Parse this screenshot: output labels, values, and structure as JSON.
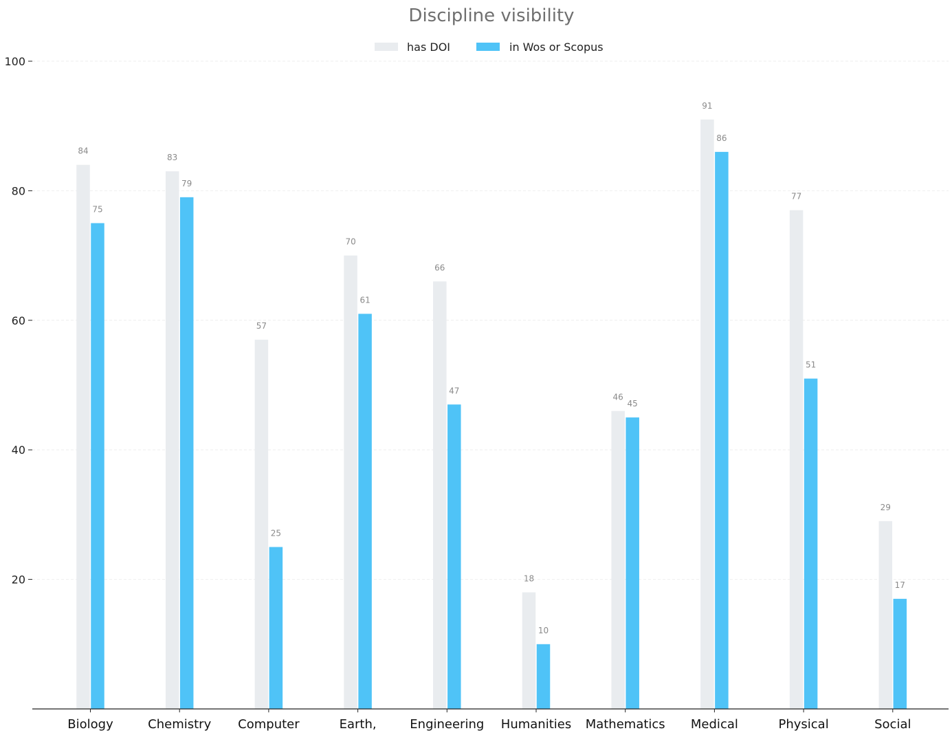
{
  "chart_data": {
    "type": "bar",
    "title": "Discipline visibility",
    "categories": [
      "Biology",
      "Chemistry",
      "Computer",
      "Earth,",
      "Engineering",
      "Humanities",
      "Mathematics",
      "Medical",
      "Physical",
      "Social"
    ],
    "series": [
      {
        "name": "has DOI",
        "color": "#e9ecef",
        "values": [
          84,
          83,
          57,
          70,
          66,
          18,
          46,
          91,
          77,
          29
        ]
      },
      {
        "name": "in Wos or Scopus",
        "color": "#4fc3f7",
        "values": [
          75,
          79,
          25,
          61,
          47,
          10,
          45,
          86,
          51,
          17
        ]
      }
    ],
    "yticks": [
      20,
      40,
      60,
      80,
      100
    ],
    "ylim": [
      0,
      100
    ],
    "xlabel": "",
    "ylabel": "",
    "grid": true,
    "legend_position": "top-center"
  }
}
